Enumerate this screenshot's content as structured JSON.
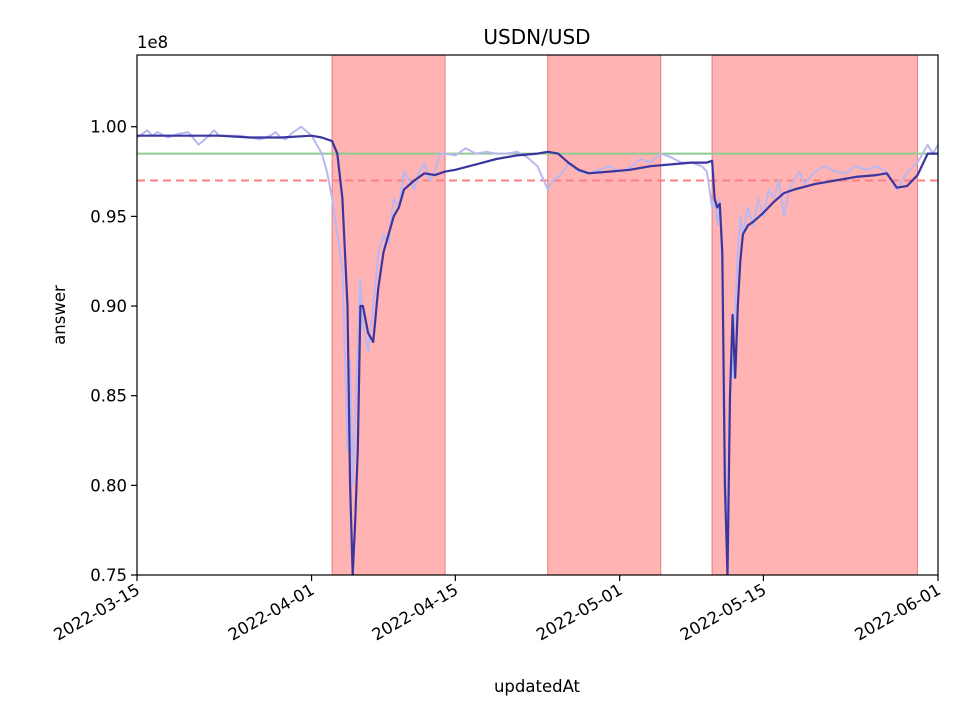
{
  "chart_data": {
    "type": "line",
    "title": "USDN/USD",
    "xlabel": "updatedAt",
    "ylabel": "answer",
    "y_multiplier": "1e8",
    "xlim": [
      "2022-03-15",
      "2022-06-01"
    ],
    "ylim": [
      0.75,
      1.04
    ],
    "x_ticks": [
      "2022-03-15",
      "2022-04-01",
      "2022-04-15",
      "2022-05-01",
      "2022-05-15",
      "2022-06-01"
    ],
    "y_ticks": [
      "0.75",
      "0.80",
      "0.85",
      "0.90",
      "0.95",
      "1.00"
    ],
    "grid": false,
    "colors": {
      "raw": "#b8b8f2",
      "smoothed": "#3b35a0",
      "reference": "#8fca8f",
      "threshold": "#ff8080",
      "shaded": "#ffb3b3",
      "shaded_edge": "#e87b7b"
    },
    "reference_lines": [
      {
        "y": 0.985,
        "style": "solid",
        "color": "green"
      },
      {
        "y": 0.97,
        "style": "dashed",
        "color": "red"
      }
    ],
    "shaded_regions": [
      {
        "start": "2022-04-03",
        "end": "2022-04-14"
      },
      {
        "start": "2022-04-24",
        "end": "2022-05-05"
      },
      {
        "start": "2022-05-10",
        "end": "2022-05-30"
      }
    ],
    "series": [
      {
        "role": "raw",
        "x": [
          "2022-03-15",
          "2022-03-16",
          "2022-03-16 12:00",
          "2022-03-17",
          "2022-03-18",
          "2022-03-19",
          "2022-03-20",
          "2022-03-21",
          "2022-03-22",
          "2022-03-22 12:00",
          "2022-03-23",
          "2022-03-24",
          "2022-03-25",
          "2022-03-26",
          "2022-03-27",
          "2022-03-28",
          "2022-03-28 12:00",
          "2022-03-29",
          "2022-03-29 12:00",
          "2022-03-30",
          "2022-03-31",
          "2022-04-01",
          "2022-04-02",
          "2022-04-02 12:00",
          "2022-04-03",
          "2022-04-03 12:00",
          "2022-04-04",
          "2022-04-04 06:00",
          "2022-04-04 12:00",
          "2022-04-04 18:00",
          "2022-04-05",
          "2022-04-05 06:00",
          "2022-04-05 12:00",
          "2022-04-05 18:00",
          "2022-04-06",
          "2022-04-06 12:00",
          "2022-04-07",
          "2022-04-07 12:00",
          "2022-04-08",
          "2022-04-08 12:00",
          "2022-04-09",
          "2022-04-09 12:00",
          "2022-04-10",
          "2022-04-10 12:00",
          "2022-04-11",
          "2022-04-11 12:00",
          "2022-04-12",
          "2022-04-12 12:00",
          "2022-04-13",
          "2022-04-13 12:00",
          "2022-04-14",
          "2022-04-15",
          "2022-04-16",
          "2022-04-17",
          "2022-04-18",
          "2022-04-19",
          "2022-04-20",
          "2022-04-21",
          "2022-04-22",
          "2022-04-23",
          "2022-04-24",
          "2022-04-24 12:00",
          "2022-04-25",
          "2022-04-25 12:00",
          "2022-04-26",
          "2022-04-27",
          "2022-04-28",
          "2022-04-29",
          "2022-04-30",
          "2022-05-01",
          "2022-05-02",
          "2022-05-03",
          "2022-05-04",
          "2022-05-05",
          "2022-05-06",
          "2022-05-07",
          "2022-05-08",
          "2022-05-09",
          "2022-05-09 12:00",
          "2022-05-10",
          "2022-05-10 06:00",
          "2022-05-10 12:00",
          "2022-05-10 18:00",
          "2022-05-11",
          "2022-05-11 04:00",
          "2022-05-11 08:00",
          "2022-05-11 12:00",
          "2022-05-11 16:00",
          "2022-05-11 20:00",
          "2022-05-12",
          "2022-05-12 06:00",
          "2022-05-12 12:00",
          "2022-05-12 18:00",
          "2022-05-13",
          "2022-05-13 12:00",
          "2022-05-14",
          "2022-05-14 12:00",
          "2022-05-15",
          "2022-05-15 12:00",
          "2022-05-16",
          "2022-05-16 12:00",
          "2022-05-17",
          "2022-05-17 12:00",
          "2022-05-18",
          "2022-05-18 12:00",
          "2022-05-19",
          "2022-05-20",
          "2022-05-21",
          "2022-05-22",
          "2022-05-23",
          "2022-05-24",
          "2022-05-25",
          "2022-05-26",
          "2022-05-27",
          "2022-05-28",
          "2022-05-29",
          "2022-05-30",
          "2022-05-30 12:00",
          "2022-05-31",
          "2022-05-31 12:00",
          "2022-06-01"
        ],
        "y": [
          0.994,
          0.998,
          0.995,
          0.997,
          0.994,
          0.996,
          0.997,
          0.99,
          0.995,
          0.998,
          0.995,
          0.995,
          0.995,
          0.994,
          0.993,
          0.995,
          0.997,
          0.994,
          0.993,
          0.996,
          1.0,
          0.995,
          0.985,
          0.975,
          0.96,
          0.94,
          0.92,
          0.87,
          0.82,
          0.87,
          0.8,
          0.84,
          0.88,
          0.915,
          0.89,
          0.875,
          0.9,
          0.93,
          0.94,
          0.935,
          0.96,
          0.955,
          0.975,
          0.97,
          0.965,
          0.975,
          0.98,
          0.97,
          0.975,
          0.985,
          0.985,
          0.984,
          0.988,
          0.985,
          0.986,
          0.985,
          0.985,
          0.986,
          0.983,
          0.978,
          0.965,
          0.97,
          0.972,
          0.975,
          0.98,
          0.975,
          0.974,
          0.976,
          0.978,
          0.975,
          0.977,
          0.982,
          0.98,
          0.985,
          0.983,
          0.98,
          0.98,
          0.978,
          0.975,
          0.955,
          0.96,
          0.945,
          0.96,
          0.92,
          0.86,
          0.8,
          0.75,
          0.83,
          0.87,
          0.86,
          0.9,
          0.93,
          0.95,
          0.94,
          0.955,
          0.945,
          0.96,
          0.95,
          0.965,
          0.96,
          0.97,
          0.95,
          0.965,
          0.97,
          0.975,
          0.968,
          0.975,
          0.978,
          0.975,
          0.974,
          0.978,
          0.976,
          0.978,
          0.975,
          0.965,
          0.975,
          0.98,
          0.985,
          0.99,
          0.985,
          0.99
        ]
      },
      {
        "role": "smoothed",
        "x": [
          "2022-03-15",
          "2022-03-17",
          "2022-03-20",
          "2022-03-23",
          "2022-03-26",
          "2022-03-29",
          "2022-04-01",
          "2022-04-02",
          "2022-04-03",
          "2022-04-03 12:00",
          "2022-04-04",
          "2022-04-04 12:00",
          "2022-04-04 18:00",
          "2022-04-05",
          "2022-04-05 06:00",
          "2022-04-05 12:00",
          "2022-04-05 18:00",
          "2022-04-06",
          "2022-04-06 12:00",
          "2022-04-07",
          "2022-04-07 12:00",
          "2022-04-08",
          "2022-04-08 12:00",
          "2022-04-09",
          "2022-04-09 12:00",
          "2022-04-10",
          "2022-04-11",
          "2022-04-12",
          "2022-04-13",
          "2022-04-14",
          "2022-04-15",
          "2022-04-17",
          "2022-04-19",
          "2022-04-21",
          "2022-04-23",
          "2022-04-24",
          "2022-04-25",
          "2022-04-26",
          "2022-04-27",
          "2022-04-28",
          "2022-04-30",
          "2022-05-02",
          "2022-05-04",
          "2022-05-06",
          "2022-05-08",
          "2022-05-09 12:00",
          "2022-05-10",
          "2022-05-10 06:00",
          "2022-05-10 12:00",
          "2022-05-10 18:00",
          "2022-05-11",
          "2022-05-11 06:00",
          "2022-05-11 12:00",
          "2022-05-11 18:00",
          "2022-05-12",
          "2022-05-12 06:00",
          "2022-05-12 12:00",
          "2022-05-12 18:00",
          "2022-05-13",
          "2022-05-13 12:00",
          "2022-05-14",
          "2022-05-15",
          "2022-05-16",
          "2022-05-17",
          "2022-05-18",
          "2022-05-20",
          "2022-05-22",
          "2022-05-24",
          "2022-05-26",
          "2022-05-27",
          "2022-05-28",
          "2022-05-29",
          "2022-05-30",
          "2022-05-31",
          "2022-06-01"
        ],
        "y": [
          0.995,
          0.995,
          0.995,
          0.995,
          0.994,
          0.994,
          0.995,
          0.994,
          0.992,
          0.985,
          0.96,
          0.9,
          0.8,
          0.75,
          0.78,
          0.82,
          0.9,
          0.9,
          0.885,
          0.88,
          0.91,
          0.93,
          0.94,
          0.95,
          0.955,
          0.965,
          0.97,
          0.974,
          0.973,
          0.975,
          0.976,
          0.979,
          0.982,
          0.984,
          0.985,
          0.986,
          0.985,
          0.98,
          0.976,
          0.974,
          0.975,
          0.976,
          0.978,
          0.979,
          0.98,
          0.98,
          0.981,
          0.96,
          0.955,
          0.957,
          0.93,
          0.8,
          0.75,
          0.85,
          0.895,
          0.86,
          0.9,
          0.925,
          0.94,
          0.945,
          0.947,
          0.952,
          0.958,
          0.963,
          0.965,
          0.968,
          0.97,
          0.972,
          0.973,
          0.974,
          0.966,
          0.967,
          0.973,
          0.985,
          0.985
        ]
      }
    ]
  }
}
